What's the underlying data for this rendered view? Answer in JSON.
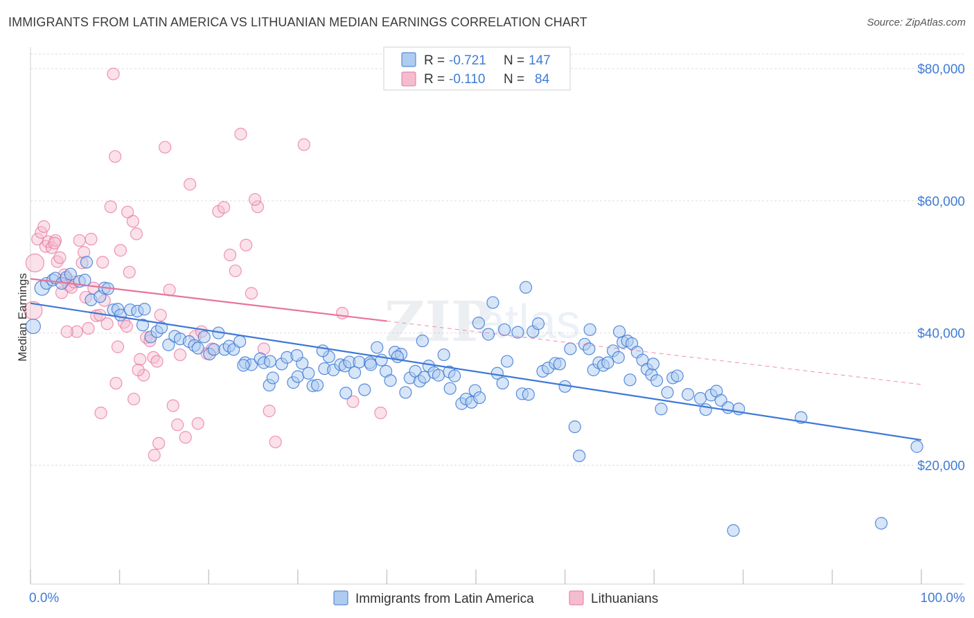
{
  "title": "IMMIGRANTS FROM LATIN AMERICA VS LITHUANIAN MEDIAN EARNINGS CORRELATION CHART",
  "source": "Source: ZipAtlas.com",
  "colors": {
    "blue": "#3d78d6",
    "blue_fill": "#aecbf0",
    "pink": "#e8739a",
    "pink_fill": "#f5bcd0",
    "tick_text": "#3f7bd6",
    "grid": "#dddddd"
  },
  "legend": {
    "rows": [
      {
        "r_label": "R = ",
        "r_value": "-0.721",
        "n_label": "N = ",
        "n_value": "147"
      },
      {
        "r_label": "R = ",
        "r_value": "-0.110",
        "n_label": "N = ",
        "n_value": "84"
      }
    ]
  },
  "bottom_legend": [
    "Immigrants from Latin America",
    "Lithuanians"
  ],
  "chart_data": {
    "type": "scatter",
    "title": "IMMIGRANTS FROM LATIN AMERICA VS LITHUANIAN MEDIAN EARNINGS CORRELATION CHART",
    "xlabel": "",
    "ylabel": "Median Earnings",
    "xlim": [
      0,
      100
    ],
    "ylim": [
      2000,
      82000
    ],
    "x_tick_labels": [
      "0.0%",
      "100.0%"
    ],
    "y_ticks": [
      20000,
      40000,
      60000,
      80000
    ],
    "y_tick_labels": [
      "$20,000",
      "$40,000",
      "$60,000",
      "$80,000"
    ],
    "grid": true,
    "legend_position": "top-center",
    "series": [
      {
        "name": "Immigrants from Latin America",
        "color": "#3d78d6",
        "r": -0.721,
        "n": 147,
        "trend": {
          "x": [
            0,
            100
          ],
          "y": [
            44500,
            23800
          ]
        },
        "points": [
          [
            0.3,
            41000
          ],
          [
            1.3,
            46800
          ],
          [
            1.8,
            47500
          ],
          [
            2.5,
            48000
          ],
          [
            2.8,
            48300
          ],
          [
            3.5,
            47500
          ],
          [
            4.0,
            48400
          ],
          [
            4.5,
            48900
          ],
          [
            5.5,
            47800
          ],
          [
            6.1,
            48000
          ],
          [
            6.3,
            50700
          ],
          [
            6.8,
            45000
          ],
          [
            7.8,
            45500
          ],
          [
            8.3,
            46800
          ],
          [
            8.7,
            46700
          ],
          [
            9.3,
            43500
          ],
          [
            9.8,
            43600
          ],
          [
            10.1,
            42700
          ],
          [
            11.2,
            43500
          ],
          [
            12.0,
            43300
          ],
          [
            12.8,
            43600
          ],
          [
            12.6,
            41200
          ],
          [
            13.5,
            39400
          ],
          [
            14.2,
            40200
          ],
          [
            14.7,
            40800
          ],
          [
            15.5,
            38200
          ],
          [
            16.2,
            39500
          ],
          [
            16.8,
            39100
          ],
          [
            17.8,
            38700
          ],
          [
            18.4,
            38100
          ],
          [
            18.8,
            37700
          ],
          [
            19.5,
            39400
          ],
          [
            20.1,
            36800
          ],
          [
            20.6,
            37500
          ],
          [
            21.8,
            37500
          ],
          [
            22.3,
            38000
          ],
          [
            22.8,
            37500
          ],
          [
            23.5,
            38700
          ],
          [
            24.1,
            35500
          ],
          [
            24.8,
            35200
          ],
          [
            25.8,
            36100
          ],
          [
            26.2,
            35500
          ],
          [
            26.8,
            32100
          ],
          [
            27.2,
            33200
          ],
          [
            28.2,
            35300
          ],
          [
            28.8,
            36300
          ],
          [
            29.5,
            32500
          ],
          [
            30.0,
            33400
          ],
          [
            30.5,
            35400
          ],
          [
            31.2,
            33900
          ],
          [
            31.7,
            32000
          ],
          [
            32.2,
            32100
          ],
          [
            33.0,
            34600
          ],
          [
            33.5,
            36400
          ],
          [
            34.0,
            34400
          ],
          [
            34.8,
            35200
          ],
          [
            35.3,
            35000
          ],
          [
            35.8,
            35600
          ],
          [
            36.4,
            34000
          ],
          [
            36.9,
            35600
          ],
          [
            37.5,
            31400
          ],
          [
            38.1,
            35500
          ],
          [
            38.9,
            37800
          ],
          [
            39.4,
            35900
          ],
          [
            39.9,
            34200
          ],
          [
            40.4,
            32800
          ],
          [
            40.9,
            37100
          ],
          [
            41.6,
            36800
          ],
          [
            42.1,
            31000
          ],
          [
            42.6,
            33200
          ],
          [
            43.2,
            34200
          ],
          [
            43.7,
            32700
          ],
          [
            44.2,
            33300
          ],
          [
            44.7,
            35000
          ],
          [
            45.3,
            34000
          ],
          [
            45.8,
            33600
          ],
          [
            46.4,
            36700
          ],
          [
            47.0,
            34100
          ],
          [
            47.6,
            33500
          ],
          [
            48.4,
            29300
          ],
          [
            48.9,
            30000
          ],
          [
            49.5,
            29500
          ],
          [
            49.9,
            31300
          ],
          [
            50.4,
            30200
          ],
          [
            51.4,
            39800
          ],
          [
            51.9,
            44600
          ],
          [
            52.4,
            33900
          ],
          [
            53.0,
            32400
          ],
          [
            53.5,
            35700
          ],
          [
            54.7,
            40100
          ],
          [
            55.2,
            30800
          ],
          [
            55.9,
            30700
          ],
          [
            56.4,
            40200
          ],
          [
            57.0,
            41400
          ],
          [
            57.5,
            34200
          ],
          [
            58.1,
            34700
          ],
          [
            58.9,
            35400
          ],
          [
            59.4,
            35300
          ],
          [
            60.0,
            31900
          ],
          [
            60.6,
            37600
          ],
          [
            61.1,
            25800
          ],
          [
            61.6,
            21400
          ],
          [
            62.2,
            38300
          ],
          [
            62.7,
            37600
          ],
          [
            63.2,
            34400
          ],
          [
            63.8,
            35500
          ],
          [
            64.3,
            35100
          ],
          [
            64.8,
            35500
          ],
          [
            65.4,
            37300
          ],
          [
            66.0,
            36300
          ],
          [
            66.5,
            38600
          ],
          [
            67.0,
            38800
          ],
          [
            67.5,
            38400
          ],
          [
            68.1,
            37100
          ],
          [
            68.7,
            35900
          ],
          [
            69.2,
            34500
          ],
          [
            69.7,
            33700
          ],
          [
            70.3,
            32800
          ],
          [
            70.8,
            28500
          ],
          [
            71.5,
            31000
          ],
          [
            72.1,
            33200
          ],
          [
            72.6,
            33500
          ],
          [
            73.8,
            30700
          ],
          [
            75.2,
            30100
          ],
          [
            75.8,
            28400
          ],
          [
            76.4,
            30600
          ],
          [
            77.0,
            31200
          ],
          [
            77.5,
            29800
          ],
          [
            78.3,
            28700
          ],
          [
            79.5,
            28500
          ],
          [
            62.8,
            40500
          ],
          [
            66.1,
            40200
          ],
          [
            67.3,
            32900
          ],
          [
            69.9,
            35300
          ],
          [
            55.6,
            46900
          ],
          [
            53.2,
            40500
          ],
          [
            50.3,
            41500
          ],
          [
            47.1,
            31600
          ],
          [
            44.0,
            38800
          ],
          [
            41.2,
            36400
          ],
          [
            38.2,
            35200
          ],
          [
            35.4,
            30900
          ],
          [
            32.8,
            37300
          ],
          [
            29.9,
            36600
          ],
          [
            26.9,
            35700
          ],
          [
            23.9,
            35100
          ],
          [
            21.1,
            40000
          ],
          [
            86.5,
            27200
          ],
          [
            78.9,
            10100
          ],
          [
            95.5,
            11200
          ],
          [
            99.5,
            22800
          ]
        ]
      },
      {
        "name": "Lithuanians",
        "color": "#e8739a",
        "r": -0.11,
        "n": 84,
        "trend_solid": {
          "x": [
            0,
            40
          ],
          "y": [
            48200,
            41800
          ]
        },
        "trend_dashed": {
          "x": [
            40,
            100
          ],
          "y": [
            41800,
            32200
          ]
        },
        "points": [
          [
            0.3,
            43400
          ],
          [
            0.5,
            50600
          ],
          [
            0.8,
            54200
          ],
          [
            1.2,
            55200
          ],
          [
            1.5,
            56100
          ],
          [
            1.7,
            53100
          ],
          [
            2.0,
            53800
          ],
          [
            2.4,
            52900
          ],
          [
            2.8,
            54000
          ],
          [
            3.0,
            50800
          ],
          [
            3.3,
            51400
          ],
          [
            3.5,
            46100
          ],
          [
            3.8,
            48800
          ],
          [
            3.9,
            48000
          ],
          [
            4.3,
            47200
          ],
          [
            4.6,
            46900
          ],
          [
            4.9,
            47700
          ],
          [
            5.2,
            40200
          ],
          [
            5.5,
            54000
          ],
          [
            5.8,
            50600
          ],
          [
            6.0,
            52200
          ],
          [
            6.2,
            45400
          ],
          [
            6.5,
            40700
          ],
          [
            6.8,
            54200
          ],
          [
            7.1,
            46800
          ],
          [
            7.4,
            42600
          ],
          [
            7.8,
            42700
          ],
          [
            8.1,
            50700
          ],
          [
            8.3,
            44900
          ],
          [
            8.6,
            41400
          ],
          [
            9.0,
            59100
          ],
          [
            9.3,
            79200
          ],
          [
            9.5,
            66700
          ],
          [
            9.8,
            37900
          ],
          [
            10.1,
            52500
          ],
          [
            10.5,
            41600
          ],
          [
            10.8,
            41000
          ],
          [
            11.1,
            49200
          ],
          [
            11.5,
            56900
          ],
          [
            11.9,
            55000
          ],
          [
            12.3,
            36000
          ],
          [
            12.7,
            33600
          ],
          [
            13.0,
            39300
          ],
          [
            13.4,
            38800
          ],
          [
            13.8,
            36300
          ],
          [
            14.2,
            35700
          ],
          [
            14.6,
            42700
          ],
          [
            15.1,
            68100
          ],
          [
            15.6,
            46500
          ],
          [
            16.0,
            29000
          ],
          [
            16.5,
            26100
          ],
          [
            16.8,
            36700
          ],
          [
            17.4,
            24200
          ],
          [
            17.9,
            62500
          ],
          [
            18.5,
            39500
          ],
          [
            19.2,
            40200
          ],
          [
            19.8,
            36900
          ],
          [
            20.4,
            37600
          ],
          [
            21.1,
            58400
          ],
          [
            21.7,
            59000
          ],
          [
            22.4,
            51800
          ],
          [
            23.0,
            49400
          ],
          [
            23.6,
            70100
          ],
          [
            24.2,
            53300
          ],
          [
            24.8,
            46000
          ],
          [
            25.5,
            59100
          ],
          [
            26.2,
            37600
          ],
          [
            26.8,
            28200
          ],
          [
            27.5,
            23500
          ],
          [
            30.7,
            68500
          ],
          [
            35.0,
            43000
          ],
          [
            36.2,
            29600
          ],
          [
            39.3,
            27900
          ],
          [
            18.8,
            26300
          ],
          [
            11.6,
            30000
          ],
          [
            14.4,
            23300
          ],
          [
            13.9,
            21500
          ],
          [
            7.9,
            27900
          ],
          [
            9.6,
            32400
          ],
          [
            12.1,
            34400
          ],
          [
            10.9,
            58300
          ],
          [
            2.7,
            53600
          ],
          [
            4.1,
            40200
          ],
          [
            25.2,
            60200
          ]
        ]
      }
    ]
  }
}
